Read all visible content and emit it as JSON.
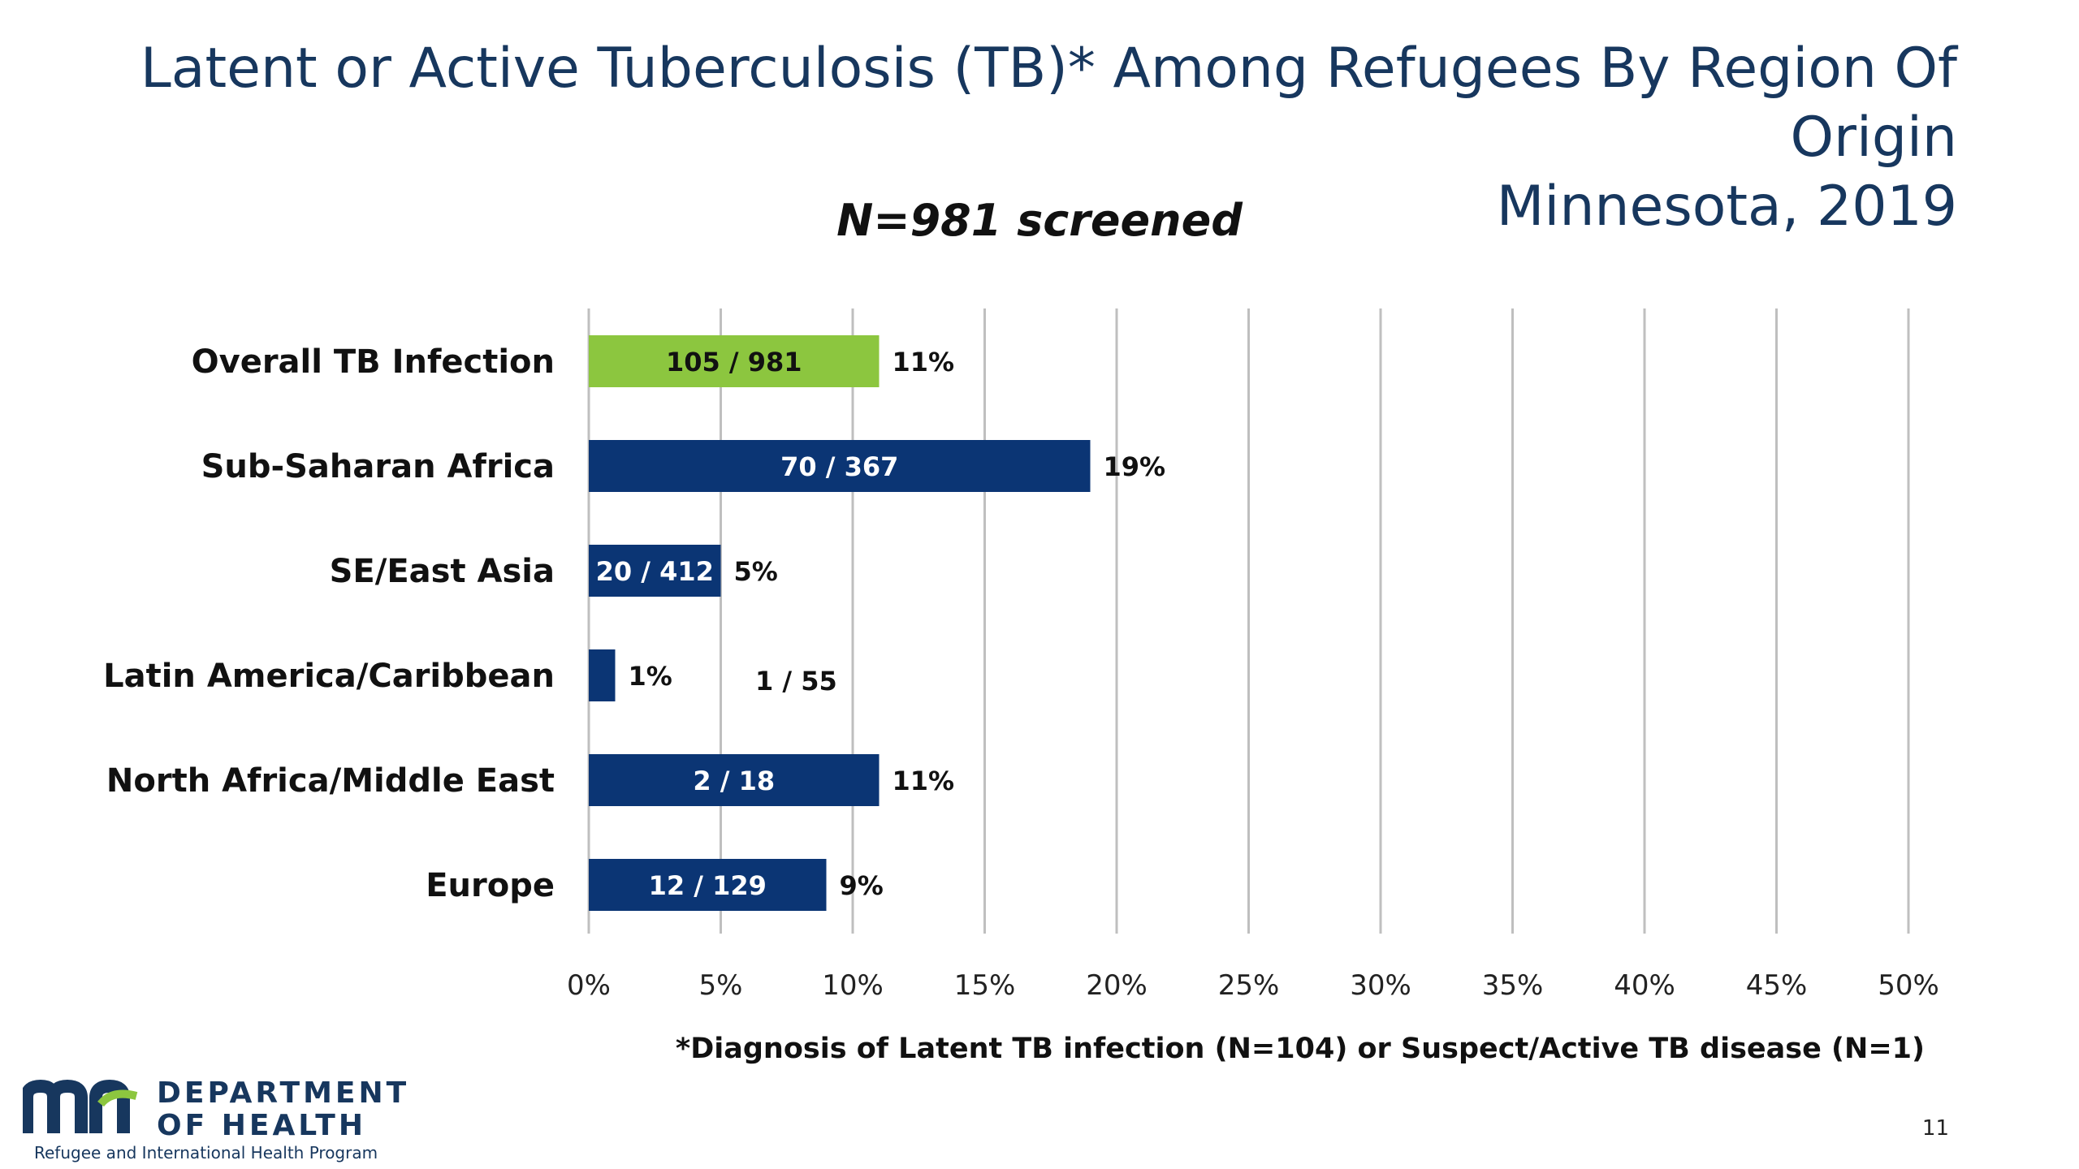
{
  "header": {
    "title_line1": "Latent or Active Tuberculosis (TB)* Among Refugees By Region Of Origin",
    "title_line2": "Minnesota, 2019"
  },
  "chart_data": {
    "type": "bar",
    "orientation": "horizontal",
    "subtitle": "N=981 screened",
    "categories": [
      "Overall TB Infection",
      "Sub-Saharan Africa",
      "SE/East Asia",
      "Latin America/Caribbean",
      "North Africa/Middle East",
      "Europe"
    ],
    "values": [
      11,
      19,
      5,
      1,
      11,
      9
    ],
    "value_labels": [
      "11%",
      "19%",
      "5%",
      "1%",
      "11%",
      "9%"
    ],
    "count_labels": [
      "105 / 981",
      "70 / 367",
      "20 / 412",
      "1 / 55",
      "2 / 18",
      "12 / 129"
    ],
    "bar_colors": [
      "#8cc63f",
      "#0b3574",
      "#0b3574",
      "#0b3574",
      "#0b3574",
      "#0b3574"
    ],
    "xlim": [
      0,
      50
    ],
    "x_ticks": [
      0,
      5,
      10,
      15,
      20,
      25,
      30,
      35,
      40,
      45,
      50
    ],
    "x_tick_labels": [
      "0%",
      "5%",
      "10%",
      "15%",
      "20%",
      "25%",
      "30%",
      "35%",
      "40%",
      "45%",
      "50%"
    ],
    "grid": "vertical"
  },
  "footnote": "*Diagnosis of Latent TB infection (N=104) or Suspect/Active TB disease (N=1)",
  "page_number": "11",
  "logo": {
    "line1": "DEPARTMENT",
    "line2": "OF HEALTH",
    "program": "Refugee and International Health Program"
  },
  "colors": {
    "title": "#17375e",
    "grid": "#bfbfbf",
    "text": "#111111"
  }
}
